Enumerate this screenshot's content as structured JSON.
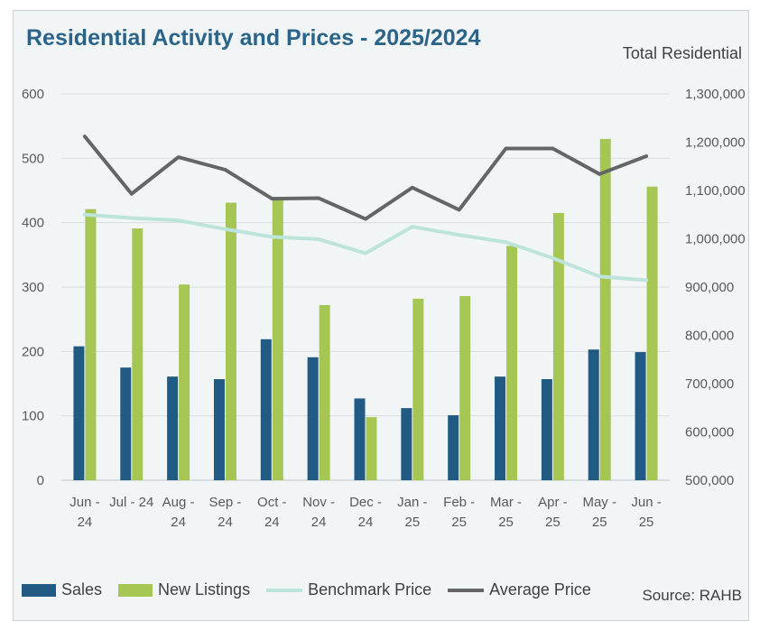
{
  "title": "Residential Activity and Prices - 2025/2024",
  "subtitle": "Total Residential",
  "source": "Source: RAHB",
  "colors": {
    "sales": "#215a82",
    "new_listings": "#a6c654",
    "benchmark": "#bde4db",
    "average": "#636566",
    "title": "#2a6489"
  },
  "legend": [
    "Sales",
    "New Listings",
    "Benchmark Price",
    "Average Price"
  ],
  "chart_data": {
    "type": "bar",
    "categories": [
      [
        "Jun -",
        "24"
      ],
      [
        "Jul - 24",
        ""
      ],
      [
        "Aug -",
        "24"
      ],
      [
        "Sep -",
        "24"
      ],
      [
        "Oct -",
        "24"
      ],
      [
        "Nov -",
        "24"
      ],
      [
        "Dec -",
        "24"
      ],
      [
        "Jan -",
        "25"
      ],
      [
        "Feb -",
        "25"
      ],
      [
        "Mar -",
        "25"
      ],
      [
        "Apr -",
        "25"
      ],
      [
        "May -",
        "25"
      ],
      [
        "Jun -",
        "25"
      ]
    ],
    "left_axis": {
      "ylim": [
        0,
        600
      ],
      "ticks": [
        "0",
        "100",
        "200",
        "300",
        "400",
        "500",
        "600"
      ]
    },
    "right_axis": {
      "ylim": [
        500000,
        1300000
      ],
      "ticks": [
        "500,000",
        "600,000",
        "700,000",
        "800,000",
        "900,000",
        "1,000,000",
        "1,100,000",
        "1,200,000",
        "1,300,000"
      ]
    },
    "grid": true,
    "legend_position": "bottom",
    "series": [
      {
        "name": "Sales",
        "type": "bar",
        "axis": "left",
        "values": [
          208,
          175,
          161,
          157,
          219,
          191,
          127,
          112,
          101,
          161,
          157,
          203,
          199
        ]
      },
      {
        "name": "New Listings",
        "type": "bar",
        "axis": "left",
        "values": [
          421,
          391,
          304,
          431,
          440,
          272,
          98,
          282,
          286,
          364,
          415,
          530,
          456
        ]
      },
      {
        "name": "Benchmark Price",
        "type": "line",
        "axis": "right",
        "values": [
          1050000,
          1043000,
          1038000,
          1020000,
          1004000,
          999000,
          970000,
          1025000,
          1008000,
          993000,
          960000,
          922000,
          914000
        ]
      },
      {
        "name": "Average Price",
        "type": "line",
        "axis": "right",
        "values": [
          1212000,
          1093000,
          1169000,
          1143000,
          1083000,
          1084000,
          1041000,
          1106000,
          1060000,
          1187000,
          1187000,
          1134000,
          1171000
        ]
      }
    ]
  }
}
